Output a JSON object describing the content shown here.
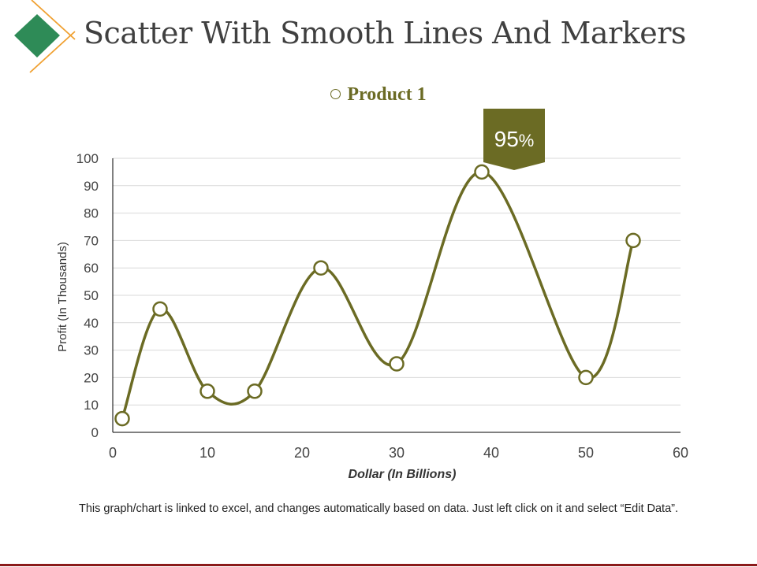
{
  "slide": {
    "title": "Scatter With Smooth Lines And Markers",
    "footnote": "This graph/chart is linked to excel, and changes automatically based on data. Just left click on it and select “Edit Data”."
  },
  "colors": {
    "series": "#6b6b24",
    "callout": "#6b6b24",
    "logo_diamond": "#2e8b57",
    "logo_line": "#f0a030",
    "axis": "#000000",
    "grid": "#d9d9d9",
    "bottom_rule": "#8b1a1a"
  },
  "chart_data": {
    "type": "scatter",
    "style": "smooth-lines-with-markers",
    "legend": "Product 1",
    "legend_position": "top-center",
    "xlabel": "Dollar (In Billions)",
    "ylabel": "Profit  (In Thousands)",
    "xlim": [
      0,
      60
    ],
    "ylim": [
      0,
      100
    ],
    "xticks": [
      0,
      10,
      20,
      30,
      40,
      50,
      60
    ],
    "yticks": [
      0,
      10,
      20,
      30,
      40,
      50,
      60,
      70,
      80,
      90,
      100
    ],
    "grid": "horizontal",
    "series": [
      {
        "name": "Product 1",
        "points": [
          {
            "x": 1,
            "y": 5
          },
          {
            "x": 5,
            "y": 45
          },
          {
            "x": 10,
            "y": 15
          },
          {
            "x": 15,
            "y": 15
          },
          {
            "x": 22,
            "y": 60
          },
          {
            "x": 30,
            "y": 25
          },
          {
            "x": 39,
            "y": 95
          },
          {
            "x": 50,
            "y": 20
          },
          {
            "x": 55,
            "y": 70
          }
        ]
      }
    ],
    "callout": {
      "number": "95",
      "unit": "%",
      "point_index": 6
    }
  }
}
